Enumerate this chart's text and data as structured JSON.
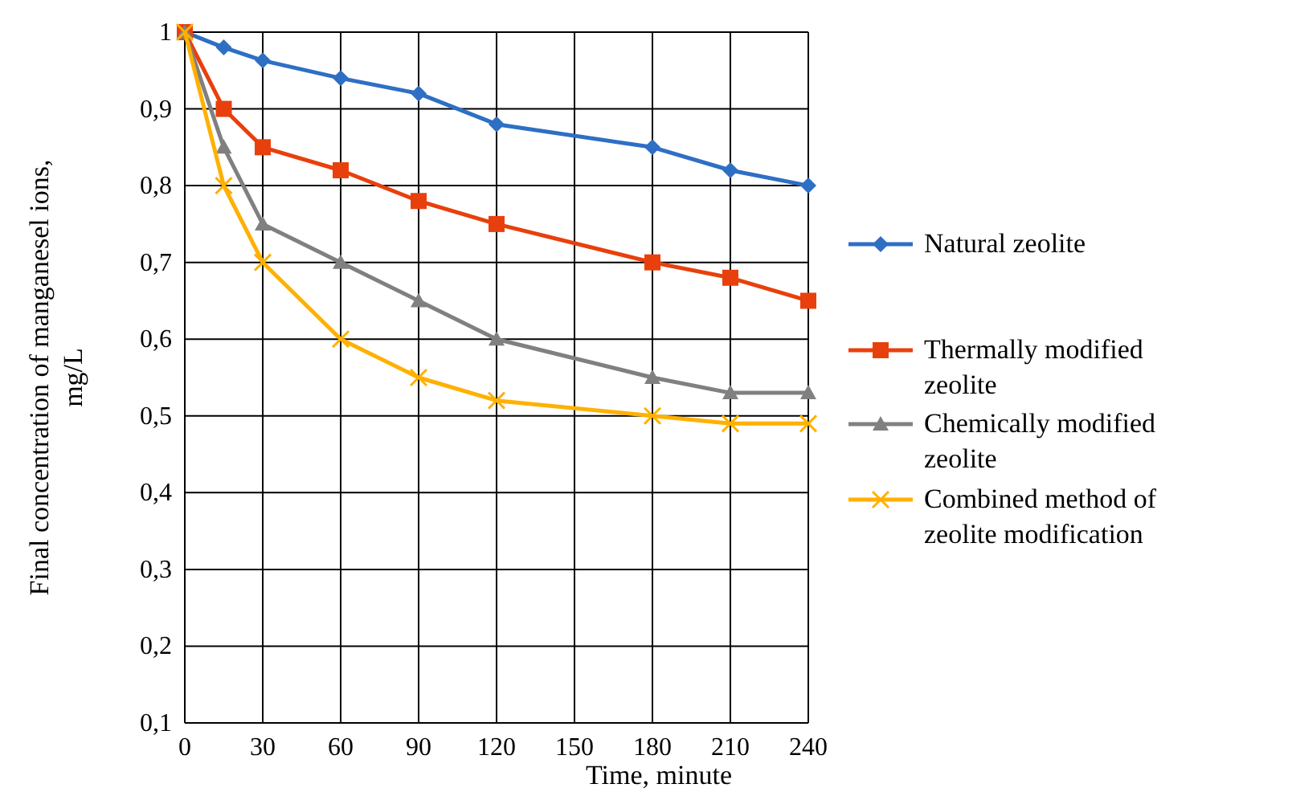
{
  "chart_data": {
    "type": "line",
    "xlabel": "Time, minute",
    "ylabel": "Final concentration of manganesel ions, mg/L",
    "xlim": [
      0,
      240
    ],
    "xticks": [
      0,
      30,
      60,
      90,
      120,
      150,
      180,
      210,
      240
    ],
    "ylim": [
      0.1,
      1
    ],
    "yticks": [
      {
        "value": 0.1,
        "label": "0,1"
      },
      {
        "value": 0.2,
        "label": "0,2"
      },
      {
        "value": 0.3,
        "label": "0,3"
      },
      {
        "value": 0.4,
        "label": "0,4"
      },
      {
        "value": 0.5,
        "label": "0,5"
      },
      {
        "value": 0.6,
        "label": "0,6"
      },
      {
        "value": 0.7,
        "label": "0,7"
      },
      {
        "value": 0.8,
        "label": "0,8"
      },
      {
        "value": 0.9,
        "label": "0,9"
      },
      {
        "value": 1,
        "label": "1"
      }
    ],
    "x": [
      0,
      15,
      30,
      60,
      90,
      120,
      180,
      210,
      240
    ],
    "grid": true,
    "legend": "right",
    "series": [
      {
        "name": "Natural zeolite",
        "color": "#2e6fc4",
        "marker": "diamond",
        "values": [
          1,
          0.98,
          0.963,
          0.94,
          0.92,
          0.88,
          0.85,
          0.82,
          0.8
        ]
      },
      {
        "name": "Thermally modified zeolite",
        "color": "#e8400c",
        "marker": "square",
        "values": [
          1,
          0.9,
          0.85,
          0.82,
          0.78,
          0.75,
          0.7,
          0.68,
          0.65
        ]
      },
      {
        "name": "Chemically modified zeolite",
        "color": "#808080",
        "marker": "triangle",
        "values": [
          1,
          0.85,
          0.75,
          0.7,
          0.65,
          0.6,
          0.55,
          0.53,
          0.53
        ]
      },
      {
        "name": "Combined method of zeolite modification",
        "color": "#ffb000",
        "marker": "cross",
        "values": [
          1,
          0.8,
          0.7,
          0.6,
          0.55,
          0.52,
          0.5,
          0.49,
          0.49
        ]
      }
    ]
  }
}
